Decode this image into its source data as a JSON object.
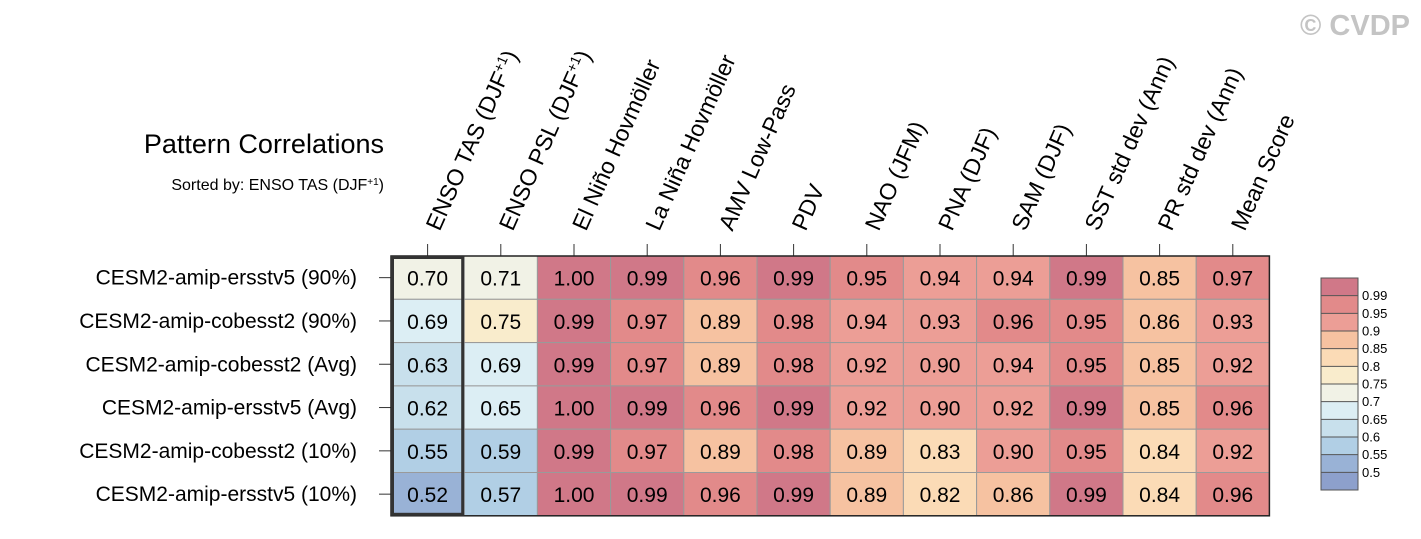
{
  "watermark": "© CVDP",
  "chart_data": {
    "type": "heatmap",
    "title": "Pattern Correlations",
    "subtitle": "Sorted by: ENSO TAS (DJF+1)",
    "columns": [
      "ENSO TAS (DJF+1)",
      "ENSO PSL (DJF+1)",
      "El Niño Hovmöller",
      "La Niña Hovmöller",
      "AMV Low-Pass",
      "PDV",
      "NAO (JFM)",
      "PNA (DJF)",
      "SAM (DJF)",
      "SST std dev (Ann)",
      "PR std dev (Ann)",
      "Mean Score"
    ],
    "rows": [
      "CESM2-amip-ersstv5 (90%)",
      "CESM2-amip-cobesst2 (90%)",
      "CESM2-amip-cobesst2 (Avg)",
      "CESM2-amip-ersstv5 (Avg)",
      "CESM2-amip-cobesst2 (10%)",
      "CESM2-amip-ersstv5 (10%)"
    ],
    "values": [
      [
        "0.70",
        "0.71",
        "1.00",
        "0.99",
        "0.96",
        "0.99",
        "0.95",
        "0.94",
        "0.94",
        "0.99",
        "0.85",
        "0.97"
      ],
      [
        "0.69",
        "0.75",
        "0.99",
        "0.97",
        "0.89",
        "0.98",
        "0.94",
        "0.93",
        "0.96",
        "0.95",
        "0.86",
        "0.93"
      ],
      [
        "0.63",
        "0.69",
        "0.99",
        "0.97",
        "0.89",
        "0.98",
        "0.92",
        "0.90",
        "0.94",
        "0.95",
        "0.85",
        "0.92"
      ],
      [
        "0.62",
        "0.65",
        "1.00",
        "0.99",
        "0.96",
        "0.99",
        "0.92",
        "0.90",
        "0.92",
        "0.99",
        "0.85",
        "0.96"
      ],
      [
        "0.55",
        "0.59",
        "0.99",
        "0.97",
        "0.89",
        "0.98",
        "0.89",
        "0.83",
        "0.90",
        "0.95",
        "0.84",
        "0.92"
      ],
      [
        "0.52",
        "0.57",
        "1.00",
        "0.99",
        "0.96",
        "0.99",
        "0.89",
        "0.82",
        "0.86",
        "0.99",
        "0.84",
        "0.96"
      ]
    ],
    "highlighted_column": "ENSO TAS (DJF+1)",
    "colorbar": {
      "levels": [
        "0.99",
        "0.95",
        "0.9",
        "0.85",
        "0.8",
        "0.75",
        "0.7",
        "0.65",
        "0.6",
        "0.55",
        "0.5"
      ],
      "colors": [
        "#d07888",
        "#e28a8a",
        "#ec9e96",
        "#f6c2a1",
        "#fbdbb6",
        "#f9eccc",
        "#f1f2e6",
        "#dceef4",
        "#c8e0ec",
        "#b1cfe5",
        "#99b2d6",
        "#8da0cc"
      ]
    }
  }
}
